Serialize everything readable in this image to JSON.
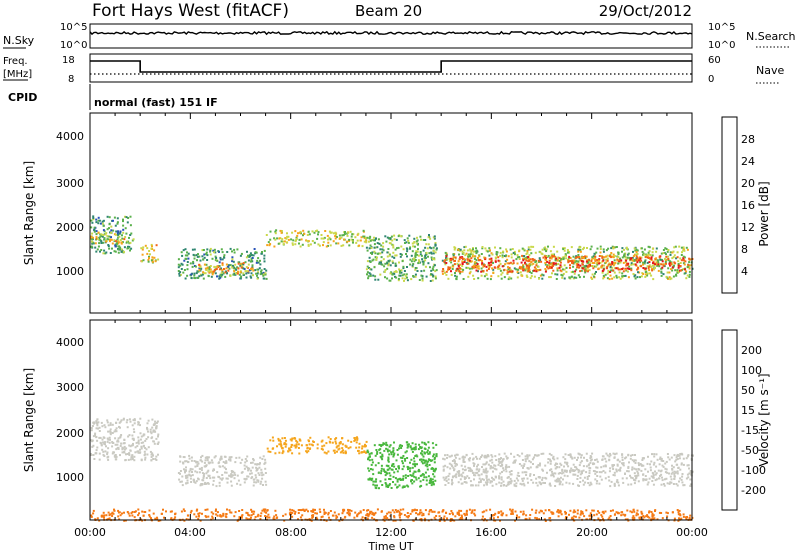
{
  "header": {
    "station": "Fort Hays West (fitACF)",
    "beam": "Beam 20",
    "date": "29/Oct/2012"
  },
  "noise_panel": {
    "left_label": "N.Sky",
    "right_label": "N.Search",
    "tick_labels": [
      "10^5",
      "10^0"
    ]
  },
  "freq_panel": {
    "left_label_1": "Freq.",
    "left_label_2": "[MHz]",
    "left_ticks": [
      "18",
      "8"
    ],
    "right_label": "Nave",
    "right_ticks": [
      "60",
      "0"
    ],
    "freq_steps": [
      {
        "from_hour": 0,
        "to_hour": 2.0,
        "level": "high"
      },
      {
        "from_hour": 2.0,
        "to_hour": 14.0,
        "level": "low"
      },
      {
        "from_hour": 14.0,
        "to_hour": 24,
        "level": "high"
      }
    ]
  },
  "cpid": {
    "label": "CPID",
    "mode": "normal (fast) 151 IF"
  },
  "x_axis": {
    "label": "Time UT",
    "tick_labels": [
      "00:00",
      "04:00",
      "08:00",
      "12:00",
      "16:00",
      "20:00",
      "00:00"
    ]
  },
  "power_panel": {
    "ylabel": "Slant Range [km]",
    "yticks": [
      "1000",
      "2000",
      "3000",
      "4000"
    ],
    "colorbar_label": "Power [dB]",
    "colorbar_ticks": [
      "4",
      "8",
      "12",
      "16",
      "20",
      "24",
      "28"
    ],
    "colorbar_colors": [
      "#0b12f0",
      "#2852b8",
      "#2e8570",
      "#59b04a",
      "#c9d84a",
      "#f5a51c",
      "#f26418",
      "#e3141b"
    ]
  },
  "velocity_panel": {
    "ylabel": "Slant Range [km]",
    "yticks": [
      "1000",
      "2000",
      "3000",
      "4000"
    ],
    "colorbar_label": "Velocity [m s⁻¹]",
    "colorbar_ticks": [
      "200",
      "100",
      "50",
      "15",
      "-15",
      "-50",
      "-100",
      "-200"
    ],
    "colorbar_colors": [
      "#2a3fd6",
      "#3f9a7c",
      "#48b73c",
      "#9fdc54",
      "#c9c9c1",
      "#f5a51c",
      "#f57a14",
      "#f04414",
      "#e3141b"
    ]
  },
  "chart_data": [
    {
      "type": "line",
      "title": "",
      "xlabel": "Time UT",
      "ylabel": "N.Sky",
      "x_range_hours": [
        0,
        24
      ],
      "y_scale": "log",
      "yticks": [
        "10^0",
        "10^5"
      ]
    },
    {
      "type": "line",
      "xlabel": "Time UT",
      "ylabel": "Freq. [MHz]",
      "x_range_hours": [
        0,
        24
      ],
      "ylim": [
        8,
        18
      ],
      "y2label": "Nave",
      "y2lim": [
        0,
        60
      ]
    },
    {
      "type": "heatmap",
      "xlabel": "Time UT",
      "ylabel": "Slant Range [km]",
      "x_range_hours": [
        0,
        24
      ],
      "ylim": [
        200,
        4500
      ],
      "color_label": "Power [dB]",
      "color_range": [
        0,
        32
      ],
      "regions": [
        {
          "t_start": 0.0,
          "t_end": 1.7,
          "range_low": 1500,
          "range_high": 2300,
          "value": 12
        },
        {
          "t_start": 0.0,
          "t_end": 1.5,
          "range_low": 1700,
          "range_high": 1950,
          "value": 20
        },
        {
          "t_start": 2.0,
          "t_end": 2.7,
          "range_low": 1300,
          "range_high": 1700,
          "value": 20
        },
        {
          "t_start": 3.5,
          "t_end": 7.0,
          "range_low": 950,
          "range_high": 1600,
          "value": 12
        },
        {
          "t_start": 4.3,
          "t_end": 6.5,
          "range_low": 1050,
          "range_high": 1300,
          "value": 22
        },
        {
          "t_start": 7.0,
          "t_end": 11.0,
          "range_low": 1650,
          "range_high": 2000,
          "value": 18
        },
        {
          "t_start": 11.0,
          "t_end": 13.8,
          "range_low": 900,
          "range_high": 1900,
          "value": 14
        },
        {
          "t_start": 14.0,
          "t_end": 24.0,
          "range_low": 950,
          "range_high": 1650,
          "value": 16
        },
        {
          "t_start": 14.0,
          "t_end": 24.0,
          "range_low": 1100,
          "range_high": 1450,
          "value": 26
        }
      ]
    },
    {
      "type": "heatmap",
      "xlabel": "Time UT",
      "ylabel": "Slant Range [km]",
      "x_range_hours": [
        0,
        24
      ],
      "ylim": [
        200,
        4500
      ],
      "color_label": "Velocity [m s⁻¹]",
      "color_range": [
        -200,
        200
      ],
      "regions": [
        {
          "t_start": 0.0,
          "t_end": 2.7,
          "range_low": 1500,
          "range_high": 2400,
          "value": 0
        },
        {
          "t_start": 3.5,
          "t_end": 7.0,
          "range_low": 950,
          "range_high": 1600,
          "value": 0
        },
        {
          "t_start": 7.0,
          "t_end": 11.0,
          "range_low": 1650,
          "range_high": 2000,
          "value": -40
        },
        {
          "t_start": 11.0,
          "t_end": 13.8,
          "range_low": 900,
          "range_high": 1900,
          "value": 60
        },
        {
          "t_start": 14.0,
          "t_end": 24.0,
          "range_low": 950,
          "range_high": 1650,
          "value": 0
        },
        {
          "t_start": 0.0,
          "t_end": 24.0,
          "range_low": 200,
          "range_high": 450,
          "value": -60
        }
      ]
    }
  ]
}
